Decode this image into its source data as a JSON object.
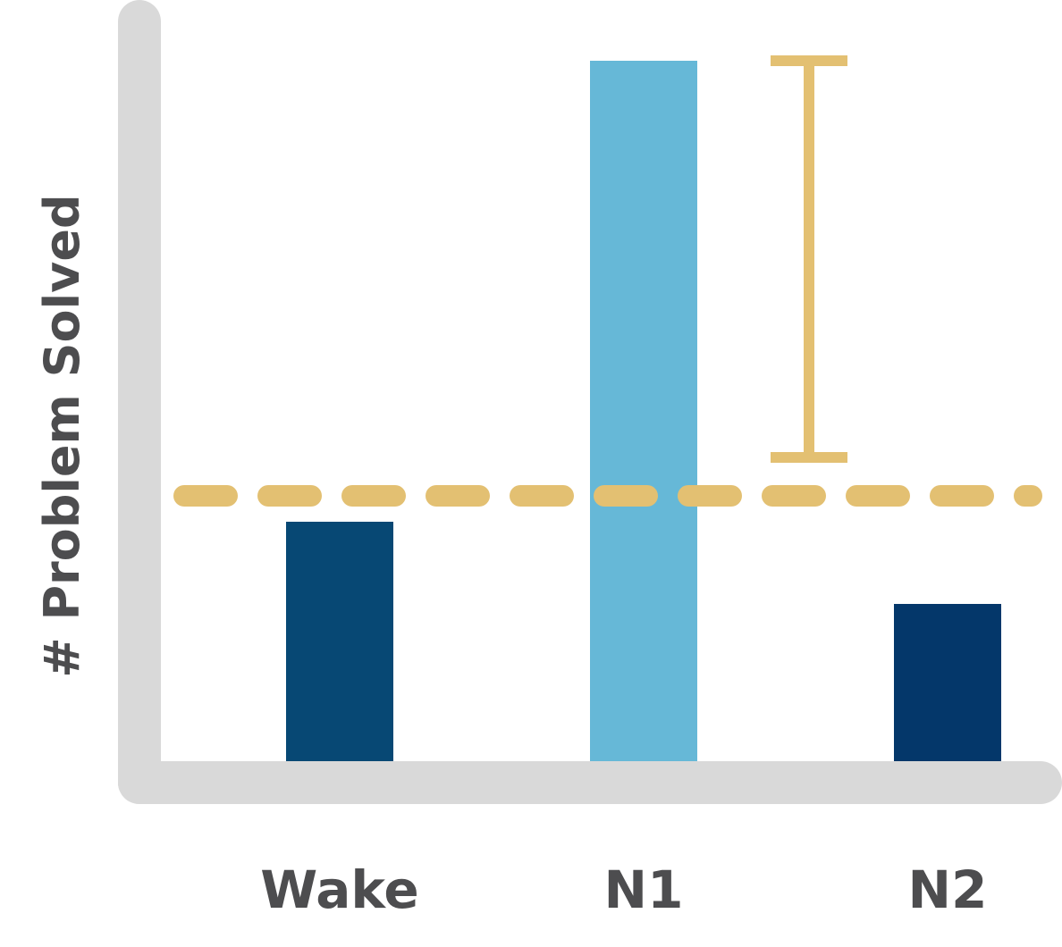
{
  "chart_data": {
    "type": "bar",
    "title": "",
    "xlabel": "",
    "ylabel": "# Problem Solved",
    "categories": [
      "Wake",
      "N1",
      "N2"
    ],
    "values": [
      268,
      784,
      176
    ],
    "colors": [
      "#074874",
      "#66b8d7",
      "#04376a"
    ],
    "ylim": [
      0,
      800
    ],
    "grid": false,
    "legend": "none",
    "reference_line": {
      "value": 297,
      "style": "dashed",
      "color": "#e3c072"
    },
    "difference_bracket": {
      "from": 340,
      "to": 784,
      "category": "N1",
      "color": "#e3c072"
    },
    "axis_color": "#d9d9d9",
    "text_color": "#4d4d4f"
  }
}
